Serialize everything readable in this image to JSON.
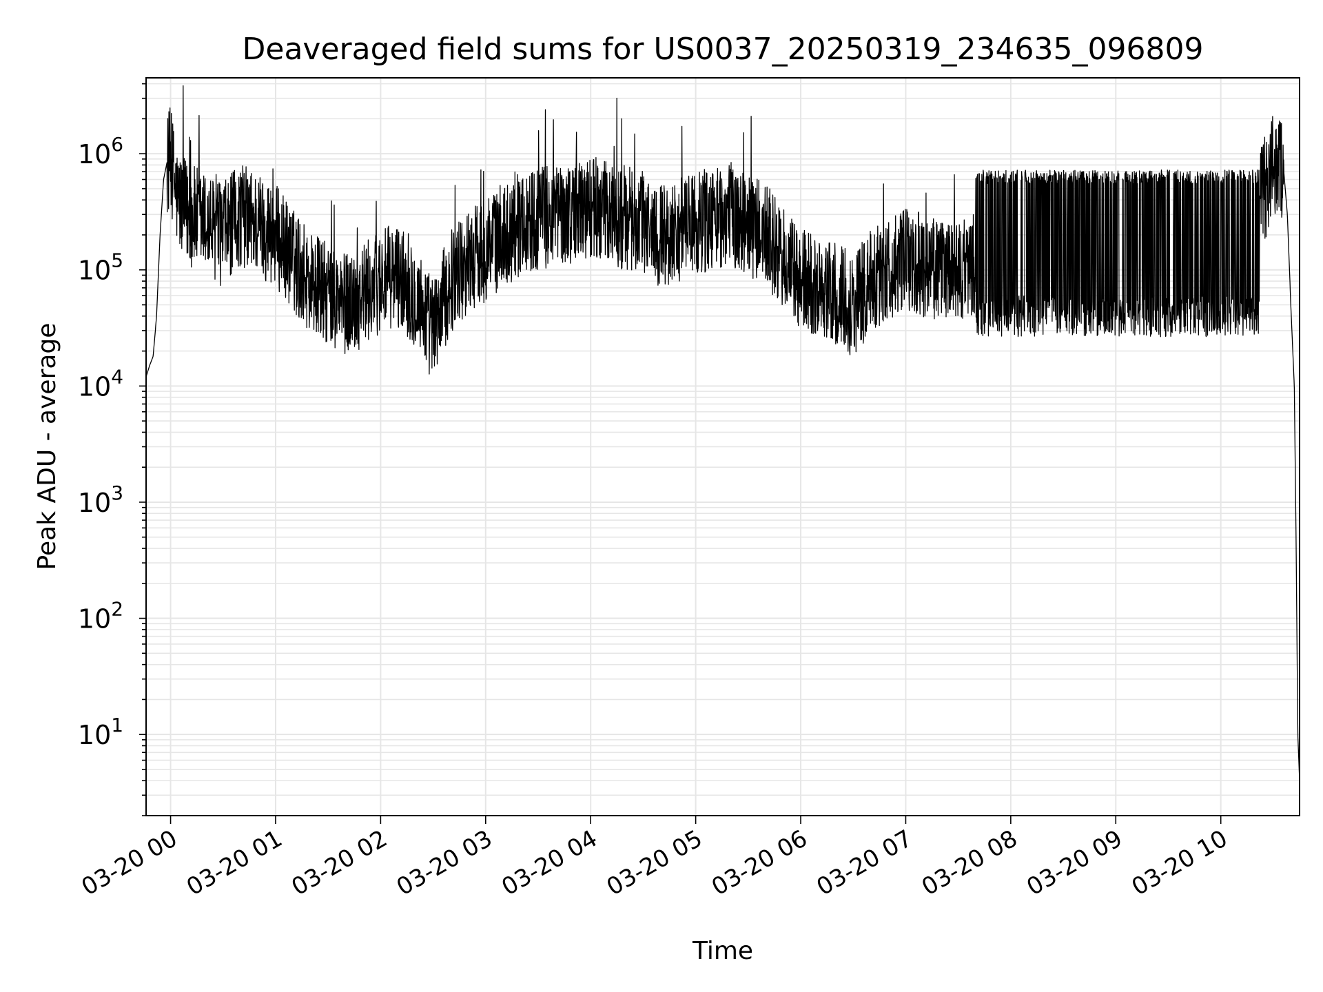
{
  "chart_data": {
    "type": "line",
    "title": "Deaveraged field sums for US0037_20250319_234635_096809",
    "xlabel": "Time",
    "ylabel": "Peak ADU - average",
    "yscale": "log",
    "ylim": [
      2,
      4500000
    ],
    "xlim": [
      "03-19 23:46",
      "03-20 10:45"
    ],
    "grid": true,
    "line_color": "#000000",
    "grid_color": "#e6e6e6",
    "x_ticks": [
      "03-20 00",
      "03-20 01",
      "03-20 02",
      "03-20 03",
      "03-20 04",
      "03-20 05",
      "03-20 06",
      "03-20 07",
      "03-20 08",
      "03-20 09",
      "03-20 10"
    ],
    "y_ticks": [
      {
        "base": "10",
        "exp": "1",
        "value": 10
      },
      {
        "base": "10",
        "exp": "2",
        "value": 100
      },
      {
        "base": "10",
        "exp": "3",
        "value": 1000
      },
      {
        "base": "10",
        "exp": "4",
        "value": 10000
      },
      {
        "base": "10",
        "exp": "5",
        "value": 100000
      },
      {
        "base": "10",
        "exp": "6",
        "value": 1000000
      }
    ],
    "series": [
      {
        "color": "#000000",
        "x": [
          "03-19 23:46",
          "03-19 23:48",
          "03-19 23:50",
          "03-19 23:52",
          "03-19 23:54",
          "03-19 23:56",
          "03-19 23:58",
          "03-20 00:00",
          "03-20 00:02",
          "03-20 00:04",
          "03-20 00:10",
          "03-20 00:20",
          "03-20 00:30",
          "03-20 00:40",
          "03-20 00:50",
          "03-20 01:00",
          "03-20 01:10",
          "03-20 01:20",
          "03-20 01:30",
          "03-20 01:40",
          "03-20 01:50",
          "03-20 02:00",
          "03-20 02:10",
          "03-20 02:20",
          "03-20 02:30",
          "03-20 02:40",
          "03-20 02:50",
          "03-20 03:00",
          "03-20 03:10",
          "03-20 03:20",
          "03-20 03:30",
          "03-20 03:40",
          "03-20 03:50",
          "03-20 04:00",
          "03-20 04:10",
          "03-20 04:20",
          "03-20 04:30",
          "03-20 04:40",
          "03-20 04:50",
          "03-20 05:00",
          "03-20 05:10",
          "03-20 05:20",
          "03-20 05:30",
          "03-20 05:40",
          "03-20 05:50",
          "03-20 06:00",
          "03-20 06:10",
          "03-20 06:20",
          "03-20 06:30",
          "03-20 06:40",
          "03-20 06:50",
          "03-20 07:00",
          "03-20 07:10",
          "03-20 07:20",
          "03-20 07:30",
          "03-20 07:40",
          "03-20 07:50",
          "03-20 08:00",
          "03-20 08:10",
          "03-20 08:20",
          "03-20 08:30",
          "03-20 08:40",
          "03-20 08:50",
          "03-20 09:00",
          "03-20 09:10",
          "03-20 09:20",
          "03-20 09:30",
          "03-20 09:40",
          "03-20 09:50",
          "03-20 10:00",
          "03-20 10:05",
          "03-20 10:10",
          "03-20 10:15",
          "03-20 10:20",
          "03-20 10:25",
          "03-20 10:30",
          "03-20 10:33",
          "03-20 10:36",
          "03-20 10:38",
          "03-20 10:40",
          "03-20 10:42",
          "03-20 10:43",
          "03-20 10:44",
          "03-20 10:45"
        ],
        "y": [
          12000,
          15000,
          18000,
          40000,
          200000,
          600000,
          850000,
          900000,
          600000,
          400000,
          300000,
          250000,
          200000,
          300000,
          250000,
          200000,
          120000,
          80000,
          60000,
          50000,
          60000,
          80000,
          90000,
          60000,
          30000,
          80000,
          120000,
          150000,
          200000,
          250000,
          280000,
          300000,
          320000,
          350000,
          300000,
          280000,
          250000,
          200000,
          220000,
          250000,
          280000,
          300000,
          250000,
          200000,
          120000,
          80000,
          70000,
          60000,
          50000,
          80000,
          100000,
          120000,
          110000,
          100000,
          90000,
          120000,
          80000,
          60000,
          80000,
          90000,
          70000,
          80000,
          90000,
          80000,
          70000,
          80000,
          90000,
          100000,
          150000,
          200000,
          250000,
          300000,
          350000,
          400000,
          500000,
          800000,
          850000,
          700000,
          300000,
          50000,
          10000,
          500,
          10,
          4
        ]
      }
    ]
  }
}
